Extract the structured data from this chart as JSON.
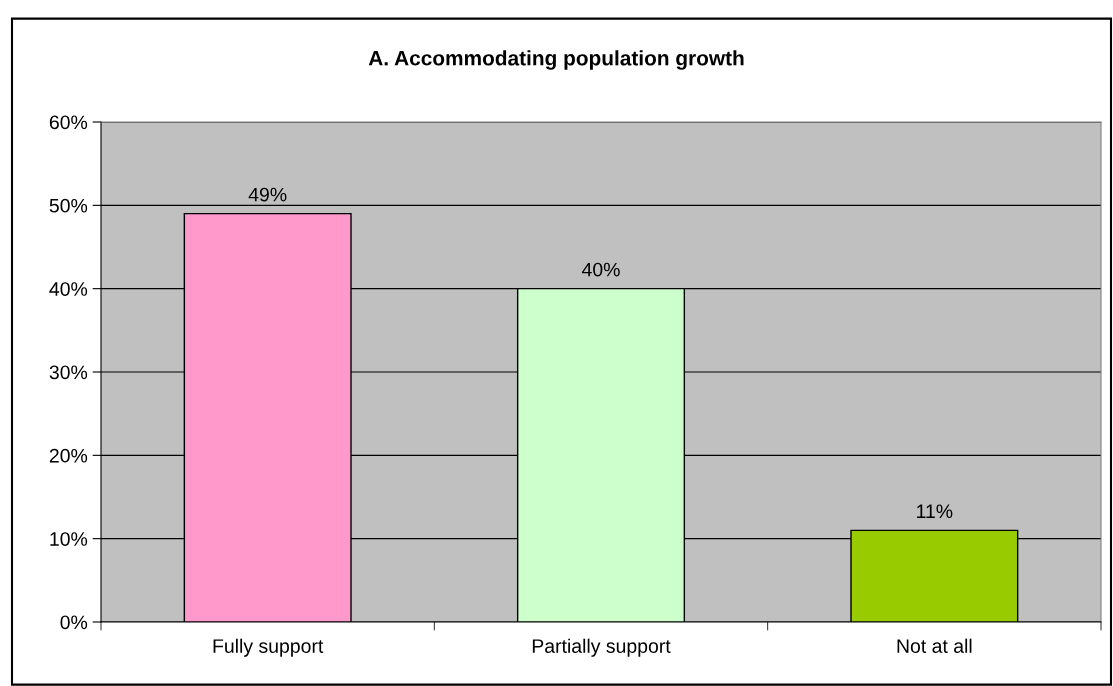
{
  "chart_data": {
    "type": "bar",
    "title": "A. Accommodating population growth",
    "categories": [
      "Fully support",
      "Partially support",
      "Not at all"
    ],
    "values": [
      49,
      40,
      11
    ],
    "colors": [
      "#ff99cc",
      "#ccffcc",
      "#99cc00"
    ],
    "value_labels": [
      "49%",
      "40%",
      "11%"
    ],
    "ylim": [
      0,
      60
    ],
    "yticks": [
      {
        "value": 0,
        "label": "0%"
      },
      {
        "value": 10,
        "label": "10%"
      },
      {
        "value": 20,
        "label": "20%"
      },
      {
        "value": 30,
        "label": "30%"
      },
      {
        "value": 40,
        "label": "40%"
      },
      {
        "value": 50,
        "label": "50%"
      },
      {
        "value": 60,
        "label": "60%"
      }
    ],
    "grid": "y",
    "legend": false
  }
}
